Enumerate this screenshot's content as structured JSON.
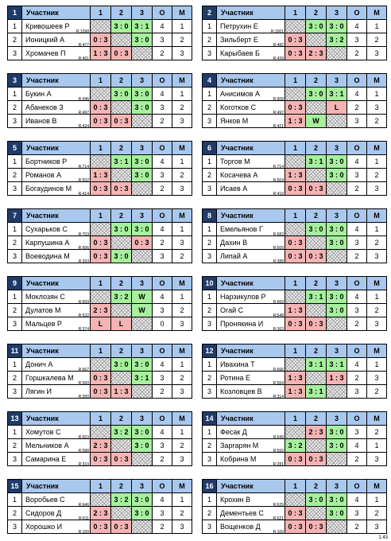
{
  "header": {
    "player": "Участник",
    "c1": "1",
    "c2": "2",
    "c3": "3",
    "o": "О",
    "m": "М"
  },
  "version": "1.43",
  "groups": [
    {
      "num": "1",
      "rows": [
        {
          "idx": "1",
          "name": "Кривошеев Р",
          "rating": "R:1098",
          "c1": "",
          "c2": "3 : 0",
          "c3": "3 : 1",
          "o": "4",
          "m": "1"
        },
        {
          "idx": "2",
          "name": "Ионицкий А",
          "rating": "R:477",
          "c1": "0 : 3",
          "c2": "",
          "c3": "3 : 0",
          "o": "3",
          "m": "2"
        },
        {
          "idx": "3",
          "name": "Хромачев П",
          "rating": "R:461",
          "c1": "1 : 3",
          "c2": "0 : 3",
          "c3": "",
          "o": "2",
          "m": "3"
        }
      ]
    },
    {
      "num": "2",
      "rows": [
        {
          "idx": "1",
          "name": "Петрухин Е",
          "rating": "R:1001",
          "c1": "",
          "c2": "3 : 0",
          "c3": "3 : 0",
          "o": "4",
          "m": "1"
        },
        {
          "idx": "2",
          "name": "Зильберт Е",
          "rating": "R:482",
          "c1": "0 : 3",
          "c2": "",
          "c3": "3 : 2",
          "o": "3",
          "m": "2"
        },
        {
          "idx": "3",
          "name": "Карыбаев Б",
          "rating": "R:439",
          "c1": "0 : 3",
          "c2": "2 : 3",
          "c3": "",
          "o": "2",
          "m": "3"
        }
      ]
    },
    {
      "num": "3",
      "rows": [
        {
          "idx": "1",
          "name": "Букин А",
          "rating": "R:946",
          "c1": "",
          "c2": "3 : 0",
          "c3": "3 : 0",
          "o": "4",
          "m": "1"
        },
        {
          "idx": "2",
          "name": "Абанеков З",
          "rating": "R:497",
          "c1": "0 : 3",
          "c2": "",
          "c3": "3 : 0",
          "o": "3",
          "m": "2"
        },
        {
          "idx": "3",
          "name": "Иванов В",
          "rating": "R:424",
          "c1": "0 : 3",
          "c2": "0 : 3",
          "c3": "",
          "o": "2",
          "m": "3"
        }
      ]
    },
    {
      "num": "4",
      "rows": [
        {
          "idx": "1",
          "name": "Анисимов А",
          "rating": "R:908",
          "c1": "",
          "c2": "3 : 0",
          "c3": "3 : 1",
          "o": "4",
          "m": "1"
        },
        {
          "idx": "2",
          "name": "Коготков С",
          "rating": "R:497",
          "c1": "0 : 3",
          "c2": "",
          "c3": "L",
          "o": "2",
          "m": "3"
        },
        {
          "idx": "3",
          "name": "Янков М",
          "rating": "R:421",
          "c1": "1 : 3",
          "c2": "W",
          "c3": "",
          "o": "3",
          "m": "2"
        }
      ]
    },
    {
      "num": "5",
      "rows": [
        {
          "idx": "1",
          "name": "Бортников Р",
          "rating": "R:714",
          "c1": "",
          "c2": "3 : 1",
          "c3": "3 : 0",
          "o": "4",
          "m": "1"
        },
        {
          "idx": "2",
          "name": "Романов А",
          "rating": "R:502",
          "c1": "1 : 3",
          "c2": "",
          "c3": "3 : 0",
          "o": "3",
          "m": "2"
        },
        {
          "idx": "3",
          "name": "Богаудинов М",
          "rating": "R:414",
          "c1": "0 : 3",
          "c2": "0 : 3",
          "c3": "",
          "o": "2",
          "m": "3"
        }
      ]
    },
    {
      "num": "6",
      "rows": [
        {
          "idx": "1",
          "name": "Торгов М",
          "rating": "R:714",
          "c1": "",
          "c2": "3 : 1",
          "c3": "3 : 0",
          "o": "4",
          "m": "1"
        },
        {
          "idx": "2",
          "name": "Косачева А",
          "rating": "R:504",
          "c1": "1 : 3",
          "c2": "",
          "c3": "3 : 0",
          "o": "3",
          "m": "2"
        },
        {
          "idx": "3",
          "name": "Исаев А",
          "rating": "R:410",
          "c1": "0 : 3",
          "c2": "0 : 3",
          "c3": "",
          "o": "2",
          "m": "3"
        }
      ]
    },
    {
      "num": "7",
      "rows": [
        {
          "idx": "1",
          "name": "Сухарьков С",
          "rating": "R:703",
          "c1": "",
          "c2": "3 : 0",
          "c3": "3 : 0",
          "o": "4",
          "m": "1"
        },
        {
          "idx": "2",
          "name": "Карпушина А",
          "rating": "R:506",
          "c1": "0 : 3",
          "c2": "",
          "c3": "0 : 3",
          "o": "2",
          "m": "3"
        },
        {
          "idx": "3",
          "name": "Воеводина М",
          "rating": "R:393",
          "c1": "0 : 3",
          "c2": "3 : 0",
          "c3": "",
          "o": "3",
          "m": "2"
        }
      ]
    },
    {
      "num": "8",
      "rows": [
        {
          "idx": "1",
          "name": "Емельянов Г",
          "rating": "R:683",
          "c1": "",
          "c2": "3 : 0",
          "c3": "3 : 0",
          "o": "4",
          "m": "1"
        },
        {
          "idx": "2",
          "name": "Дахин В",
          "rating": "R:509",
          "c1": "0 : 3",
          "c2": "",
          "c3": "3 : 0",
          "o": "3",
          "m": "2"
        },
        {
          "idx": "3",
          "name": "Липай А",
          "rating": "R:388",
          "c1": "0 : 3",
          "c2": "0 : 3",
          "c3": "",
          "o": "2",
          "m": "3"
        }
      ]
    },
    {
      "num": "9",
      "rows": [
        {
          "idx": "1",
          "name": "Моклозян С",
          "rating": "R:669",
          "c1": "",
          "c2": "3 : 2",
          "c3": "W",
          "o": "4",
          "m": "1"
        },
        {
          "idx": "2",
          "name": "Дулатов М",
          "rating": "R:532",
          "c1": "2 : 3",
          "c2": "",
          "c3": "W",
          "o": "3",
          "m": "2"
        },
        {
          "idx": "3",
          "name": "Мальцев Р",
          "rating": "R:374",
          "c1": "L",
          "c2": "L",
          "c3": "",
          "o": "0",
          "m": "3"
        }
      ]
    },
    {
      "num": "10",
      "rows": [
        {
          "idx": "1",
          "name": "Нарзикулов Р",
          "rating": "R:669",
          "c1": "",
          "c2": "3 : 1",
          "c3": "3 : 0",
          "o": "4",
          "m": "1"
        },
        {
          "idx": "2",
          "name": "Огай С",
          "rating": "R:548",
          "c1": "1 : 3",
          "c2": "",
          "c3": "3 : 0",
          "o": "3",
          "m": "2"
        },
        {
          "idx": "3",
          "name": "Пронякина И",
          "rating": "R:363",
          "c1": "0 : 3",
          "c2": "0 : 3",
          "c3": "",
          "o": "2",
          "m": "3"
        }
      ]
    },
    {
      "num": "11",
      "rows": [
        {
          "idx": "1",
          "name": "Донич А",
          "rating": "R:667",
          "c1": "",
          "c2": "3 : 0",
          "c3": "3 : 0",
          "o": "4",
          "m": "1"
        },
        {
          "idx": "2",
          "name": "Горшкалева М",
          "rating": "R:560",
          "c1": "0 : 3",
          "c2": "",
          "c3": "3 : 1",
          "o": "3",
          "m": "2"
        },
        {
          "idx": "3",
          "name": "Лягин И",
          "rating": "R:350",
          "c1": "0 : 3",
          "c2": "1 : 3",
          "c3": "",
          "o": "2",
          "m": "3"
        }
      ]
    },
    {
      "num": "12",
      "rows": [
        {
          "idx": "1",
          "name": "Ивахина Т",
          "rating": "R:666",
          "c1": "",
          "c2": "3 : 1",
          "c3": "3 : 1",
          "o": "4",
          "m": "1"
        },
        {
          "idx": "2",
          "name": "Ротина Е",
          "rating": "R:564",
          "c1": "1 : 3",
          "c2": "",
          "c3": "1 : 3",
          "o": "2",
          "m": "3"
        },
        {
          "idx": "3",
          "name": "Козловцев В",
          "rating": "R:314",
          "c1": "1 : 3",
          "c2": "3 : 1",
          "c3": "",
          "o": "3",
          "m": "2"
        }
      ]
    },
    {
      "num": "13",
      "rows": [
        {
          "idx": "1",
          "name": "Хомутов С",
          "rating": "R:653",
          "c1": "",
          "c2": "3 : 2",
          "c3": "3 : 0",
          "o": "4",
          "m": "1"
        },
        {
          "idx": "2",
          "name": "Мельников А",
          "rating": "R:588",
          "c1": "2 : 3",
          "c2": "",
          "c3": "3 : 0",
          "o": "3",
          "m": "2"
        },
        {
          "idx": "3",
          "name": "Самарина Е",
          "rating": "R:310",
          "c1": "0 : 3",
          "c2": "0 : 3",
          "c3": "",
          "o": "2",
          "m": "3"
        }
      ]
    },
    {
      "num": "14",
      "rows": [
        {
          "idx": "1",
          "name": "Фесак Д",
          "rating": "R:649",
          "c1": "",
          "c2": "2 : 3",
          "c3": "3 : 0",
          "o": "3",
          "m": "2"
        },
        {
          "idx": "2",
          "name": "Заргарян М",
          "rating": "R:593",
          "c1": "3 : 2",
          "c2": "",
          "c3": "3 : 0",
          "o": "4",
          "m": "1"
        },
        {
          "idx": "3",
          "name": "Кобрина М",
          "rating": "R:281",
          "c1": "0 : 3",
          "c2": "0 : 3",
          "c3": "",
          "o": "2",
          "m": "3"
        }
      ]
    },
    {
      "num": "15",
      "rows": [
        {
          "idx": "1",
          "name": "Воробьев С",
          "rating": "R:646",
          "c1": "",
          "c2": "3 : 2",
          "c3": "3 : 0",
          "o": "4",
          "m": "1"
        },
        {
          "idx": "2",
          "name": "Сидоров Д",
          "rating": "R:611",
          "c1": "2 : 3",
          "c2": "",
          "c3": "3 : 0",
          "o": "3",
          "m": "2"
        },
        {
          "idx": "3",
          "name": "Хорошко И",
          "rating": "R:100",
          "c1": "0 : 3",
          "c2": "0 : 3",
          "c3": "",
          "o": "2",
          "m": "3"
        }
      ]
    },
    {
      "num": "16",
      "rows": [
        {
          "idx": "1",
          "name": "Крохин В",
          "rating": "R:629",
          "c1": "",
          "c2": "3 : 0",
          "c3": "3 : 0",
          "o": "4",
          "m": "1"
        },
        {
          "idx": "2",
          "name": "Дементьев С",
          "rating": "R:621",
          "c1": "0 : 3",
          "c2": "",
          "c3": "3 : 0",
          "o": "3",
          "m": "2"
        },
        {
          "idx": "3",
          "name": "Вощенков Д",
          "rating": "R:100",
          "c1": "0 : 3",
          "c2": "0 : 3",
          "c3": "",
          "o": "2",
          "m": "3"
        }
      ]
    }
  ]
}
